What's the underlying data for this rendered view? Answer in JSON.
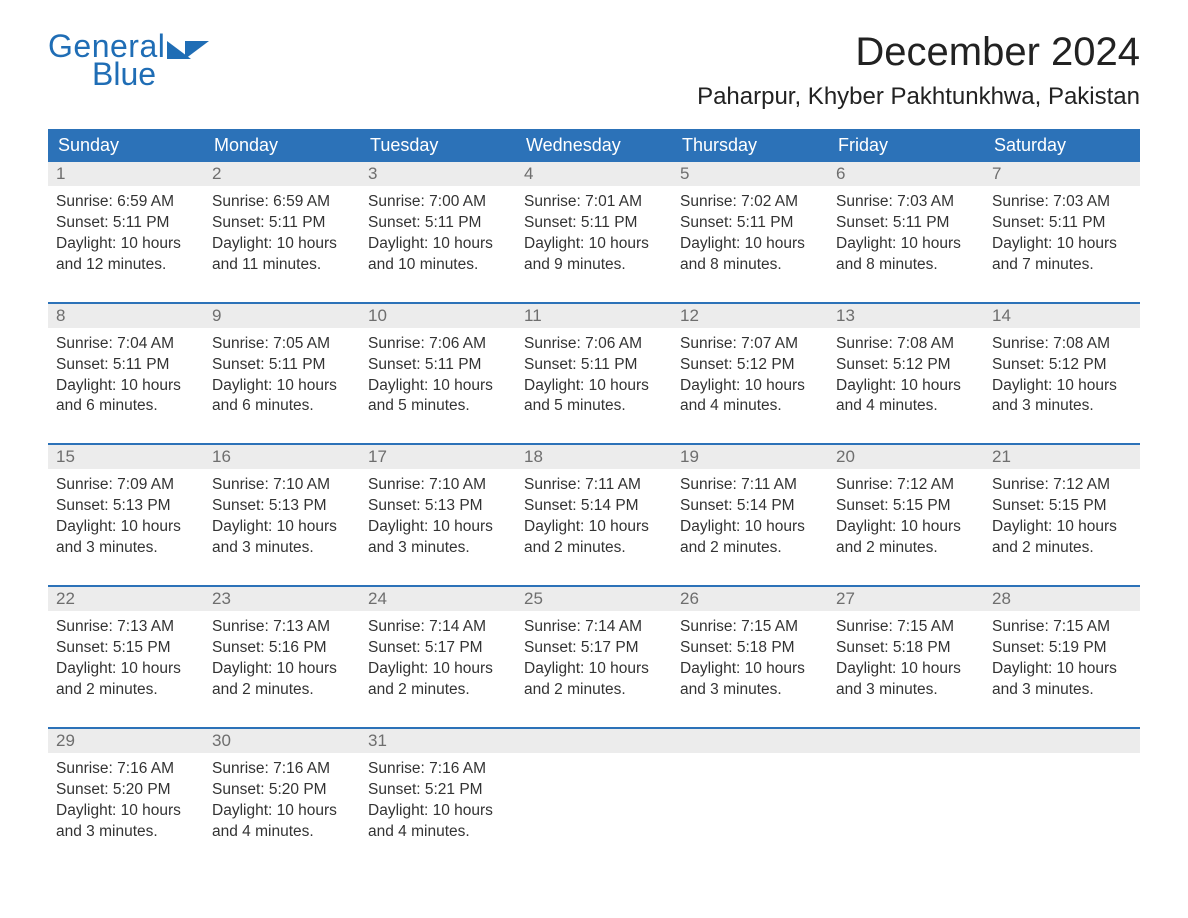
{
  "logo": {
    "text_top": "General",
    "text_bottom": "Blue"
  },
  "title": "December 2024",
  "location": "Paharpur, Khyber Pakhtunkhwa, Pakistan",
  "colors": {
    "brand": "#1f6db5",
    "header_bg": "#2c72b8",
    "header_text": "#ffffff",
    "daynum_bg": "#ececec",
    "daynum_text": "#6e6e6e",
    "body_text": "#333333",
    "rule": "#2c72b8"
  },
  "day_headers": [
    "Sunday",
    "Monday",
    "Tuesday",
    "Wednesday",
    "Thursday",
    "Friday",
    "Saturday"
  ],
  "weeks": [
    [
      {
        "n": "1",
        "sunrise": "Sunrise: 6:59 AM",
        "sunset": "Sunset: 5:11 PM",
        "dl1": "Daylight: 10 hours",
        "dl2": "and 12 minutes."
      },
      {
        "n": "2",
        "sunrise": "Sunrise: 6:59 AM",
        "sunset": "Sunset: 5:11 PM",
        "dl1": "Daylight: 10 hours",
        "dl2": "and 11 minutes."
      },
      {
        "n": "3",
        "sunrise": "Sunrise: 7:00 AM",
        "sunset": "Sunset: 5:11 PM",
        "dl1": "Daylight: 10 hours",
        "dl2": "and 10 minutes."
      },
      {
        "n": "4",
        "sunrise": "Sunrise: 7:01 AM",
        "sunset": "Sunset: 5:11 PM",
        "dl1": "Daylight: 10 hours",
        "dl2": "and 9 minutes."
      },
      {
        "n": "5",
        "sunrise": "Sunrise: 7:02 AM",
        "sunset": "Sunset: 5:11 PM",
        "dl1": "Daylight: 10 hours",
        "dl2": "and 8 minutes."
      },
      {
        "n": "6",
        "sunrise": "Sunrise: 7:03 AM",
        "sunset": "Sunset: 5:11 PM",
        "dl1": "Daylight: 10 hours",
        "dl2": "and 8 minutes."
      },
      {
        "n": "7",
        "sunrise": "Sunrise: 7:03 AM",
        "sunset": "Sunset: 5:11 PM",
        "dl1": "Daylight: 10 hours",
        "dl2": "and 7 minutes."
      }
    ],
    [
      {
        "n": "8",
        "sunrise": "Sunrise: 7:04 AM",
        "sunset": "Sunset: 5:11 PM",
        "dl1": "Daylight: 10 hours",
        "dl2": "and 6 minutes."
      },
      {
        "n": "9",
        "sunrise": "Sunrise: 7:05 AM",
        "sunset": "Sunset: 5:11 PM",
        "dl1": "Daylight: 10 hours",
        "dl2": "and 6 minutes."
      },
      {
        "n": "10",
        "sunrise": "Sunrise: 7:06 AM",
        "sunset": "Sunset: 5:11 PM",
        "dl1": "Daylight: 10 hours",
        "dl2": "and 5 minutes."
      },
      {
        "n": "11",
        "sunrise": "Sunrise: 7:06 AM",
        "sunset": "Sunset: 5:11 PM",
        "dl1": "Daylight: 10 hours",
        "dl2": "and 5 minutes."
      },
      {
        "n": "12",
        "sunrise": "Sunrise: 7:07 AM",
        "sunset": "Sunset: 5:12 PM",
        "dl1": "Daylight: 10 hours",
        "dl2": "and 4 minutes."
      },
      {
        "n": "13",
        "sunrise": "Sunrise: 7:08 AM",
        "sunset": "Sunset: 5:12 PM",
        "dl1": "Daylight: 10 hours",
        "dl2": "and 4 minutes."
      },
      {
        "n": "14",
        "sunrise": "Sunrise: 7:08 AM",
        "sunset": "Sunset: 5:12 PM",
        "dl1": "Daylight: 10 hours",
        "dl2": "and 3 minutes."
      }
    ],
    [
      {
        "n": "15",
        "sunrise": "Sunrise: 7:09 AM",
        "sunset": "Sunset: 5:13 PM",
        "dl1": "Daylight: 10 hours",
        "dl2": "and 3 minutes."
      },
      {
        "n": "16",
        "sunrise": "Sunrise: 7:10 AM",
        "sunset": "Sunset: 5:13 PM",
        "dl1": "Daylight: 10 hours",
        "dl2": "and 3 minutes."
      },
      {
        "n": "17",
        "sunrise": "Sunrise: 7:10 AM",
        "sunset": "Sunset: 5:13 PM",
        "dl1": "Daylight: 10 hours",
        "dl2": "and 3 minutes."
      },
      {
        "n": "18",
        "sunrise": "Sunrise: 7:11 AM",
        "sunset": "Sunset: 5:14 PM",
        "dl1": "Daylight: 10 hours",
        "dl2": "and 2 minutes."
      },
      {
        "n": "19",
        "sunrise": "Sunrise: 7:11 AM",
        "sunset": "Sunset: 5:14 PM",
        "dl1": "Daylight: 10 hours",
        "dl2": "and 2 minutes."
      },
      {
        "n": "20",
        "sunrise": "Sunrise: 7:12 AM",
        "sunset": "Sunset: 5:15 PM",
        "dl1": "Daylight: 10 hours",
        "dl2": "and 2 minutes."
      },
      {
        "n": "21",
        "sunrise": "Sunrise: 7:12 AM",
        "sunset": "Sunset: 5:15 PM",
        "dl1": "Daylight: 10 hours",
        "dl2": "and 2 minutes."
      }
    ],
    [
      {
        "n": "22",
        "sunrise": "Sunrise: 7:13 AM",
        "sunset": "Sunset: 5:15 PM",
        "dl1": "Daylight: 10 hours",
        "dl2": "and 2 minutes."
      },
      {
        "n": "23",
        "sunrise": "Sunrise: 7:13 AM",
        "sunset": "Sunset: 5:16 PM",
        "dl1": "Daylight: 10 hours",
        "dl2": "and 2 minutes."
      },
      {
        "n": "24",
        "sunrise": "Sunrise: 7:14 AM",
        "sunset": "Sunset: 5:17 PM",
        "dl1": "Daylight: 10 hours",
        "dl2": "and 2 minutes."
      },
      {
        "n": "25",
        "sunrise": "Sunrise: 7:14 AM",
        "sunset": "Sunset: 5:17 PM",
        "dl1": "Daylight: 10 hours",
        "dl2": "and 2 minutes."
      },
      {
        "n": "26",
        "sunrise": "Sunrise: 7:15 AM",
        "sunset": "Sunset: 5:18 PM",
        "dl1": "Daylight: 10 hours",
        "dl2": "and 3 minutes."
      },
      {
        "n": "27",
        "sunrise": "Sunrise: 7:15 AM",
        "sunset": "Sunset: 5:18 PM",
        "dl1": "Daylight: 10 hours",
        "dl2": "and 3 minutes."
      },
      {
        "n": "28",
        "sunrise": "Sunrise: 7:15 AM",
        "sunset": "Sunset: 5:19 PM",
        "dl1": "Daylight: 10 hours",
        "dl2": "and 3 minutes."
      }
    ],
    [
      {
        "n": "29",
        "sunrise": "Sunrise: 7:16 AM",
        "sunset": "Sunset: 5:20 PM",
        "dl1": "Daylight: 10 hours",
        "dl2": "and 3 minutes."
      },
      {
        "n": "30",
        "sunrise": "Sunrise: 7:16 AM",
        "sunset": "Sunset: 5:20 PM",
        "dl1": "Daylight: 10 hours",
        "dl2": "and 4 minutes."
      },
      {
        "n": "31",
        "sunrise": "Sunrise: 7:16 AM",
        "sunset": "Sunset: 5:21 PM",
        "dl1": "Daylight: 10 hours",
        "dl2": "and 4 minutes."
      },
      null,
      null,
      null,
      null
    ]
  ]
}
